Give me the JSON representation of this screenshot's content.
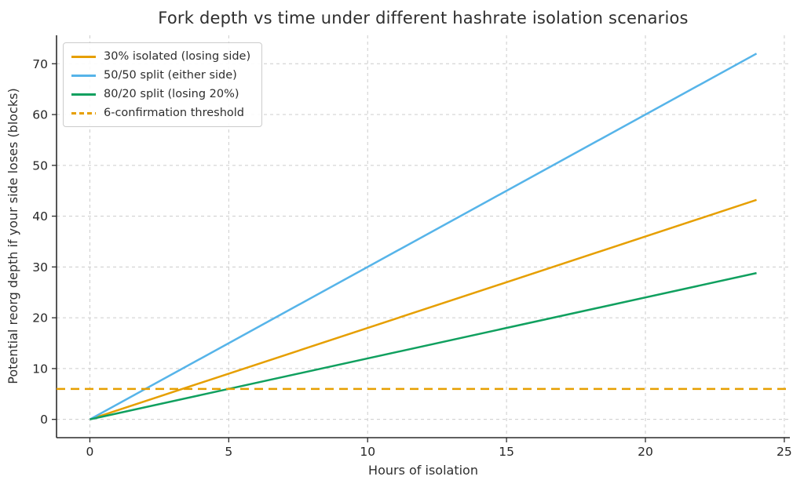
{
  "chart_data": {
    "type": "line",
    "title": "Fork depth vs time under different hashrate isolation scenarios",
    "xlabel": "Hours of isolation",
    "ylabel": "Potential reorg depth if your side loses (blocks)",
    "xlim": [
      -1.2,
      25.2
    ],
    "ylim": [
      -3.6,
      75.6
    ],
    "xticks": [
      0,
      5,
      10,
      15,
      20,
      25
    ],
    "yticks": [
      0,
      10,
      20,
      30,
      40,
      50,
      60,
      70
    ],
    "grid": true,
    "grid_style": "dashed",
    "grid_color": "#cccccc",
    "axis_color": "#2b2b2b",
    "text_color": "#262626",
    "legend_position": "upper left",
    "series": [
      {
        "name": "30% isolated (losing side)",
        "color": "#E69F00",
        "style": "solid",
        "x": [
          0,
          24
        ],
        "y": [
          0,
          43.2
        ]
      },
      {
        "name": "50/50 split (either side)",
        "color": "#56B4E9",
        "style": "solid",
        "x": [
          0,
          24
        ],
        "y": [
          0,
          72
        ]
      },
      {
        "name": "80/20 split (losing 20%)",
        "color": "#10A05F",
        "style": "solid",
        "x": [
          0,
          24
        ],
        "y": [
          0,
          28.8
        ]
      },
      {
        "name": "6-confirmation threshold",
        "color": "#E69F00",
        "style": "dashed",
        "x": [
          -1.2,
          25.2
        ],
        "y": [
          6,
          6
        ]
      }
    ]
  }
}
